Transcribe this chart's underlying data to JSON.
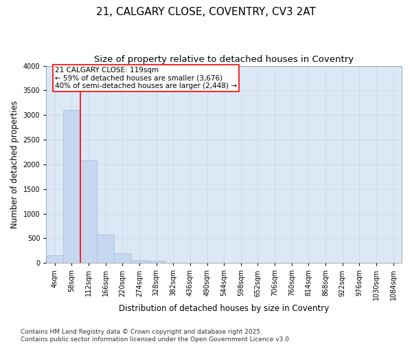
{
  "title1": "21, CALGARY CLOSE, COVENTRY, CV3 2AT",
  "title2": "Size of property relative to detached houses in Coventry",
  "xlabel": "Distribution of detached houses by size in Coventry",
  "ylabel": "Number of detached properties",
  "categories": [
    "4sqm",
    "58sqm",
    "112sqm",
    "166sqm",
    "220sqm",
    "274sqm",
    "328sqm",
    "382sqm",
    "436sqm",
    "490sqm",
    "544sqm",
    "598sqm",
    "652sqm",
    "706sqm",
    "760sqm",
    "814sqm",
    "868sqm",
    "922sqm",
    "976sqm",
    "1030sqm",
    "1084sqm"
  ],
  "values": [
    150,
    3100,
    2080,
    580,
    200,
    65,
    40,
    0,
    0,
    0,
    0,
    0,
    0,
    0,
    0,
    0,
    0,
    0,
    0,
    0,
    0
  ],
  "bar_color": "#c5d8ef",
  "bar_edge_color": "#a0bcd8",
  "vline_index": 2,
  "vline_color": "red",
  "annotation_text": "21 CALGARY CLOSE: 119sqm\n← 59% of detached houses are smaller (3,676)\n40% of semi-detached houses are larger (2,448) →",
  "annotation_box_color": "red",
  "ylim": [
    0,
    4000
  ],
  "yticks": [
    0,
    500,
    1000,
    1500,
    2000,
    2500,
    3000,
    3500,
    4000
  ],
  "grid_color": "#c8d8ec",
  "bg_color": "#dce8f5",
  "footnote": "Contains HM Land Registry data © Crown copyright and database right 2025.\nContains public sector information licensed under the Open Government Licence v3.0.",
  "title_fontsize": 11,
  "subtitle_fontsize": 9.5,
  "tick_fontsize": 7,
  "label_fontsize": 8.5,
  "annot_fontsize": 7.5,
  "footnote_fontsize": 6.5
}
